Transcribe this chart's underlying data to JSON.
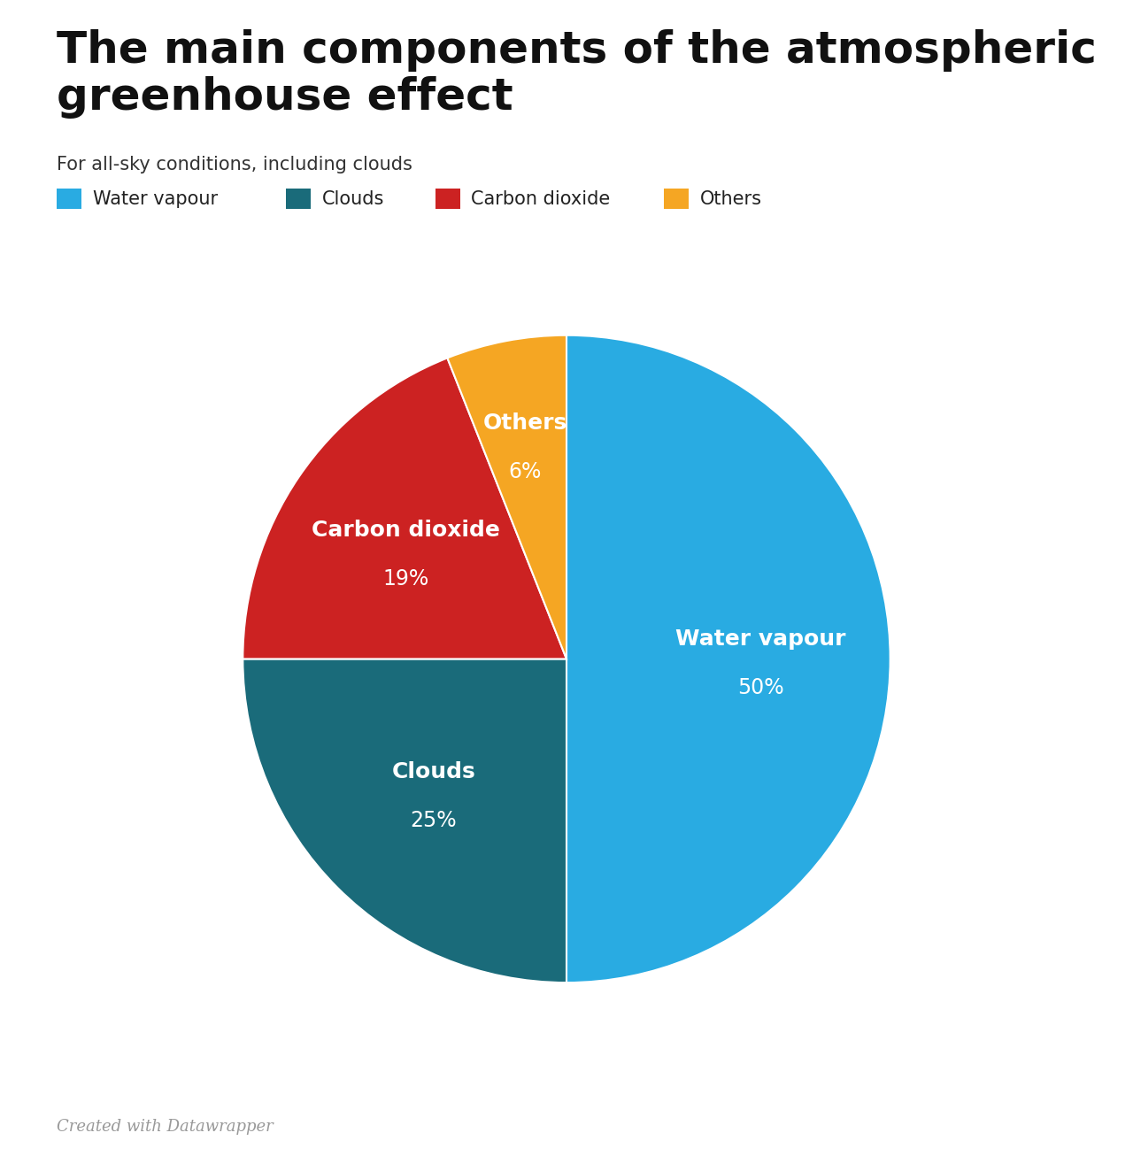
{
  "title": "The main components of the atmospheric\ngreenhouse effect",
  "subtitle": "For all-sky conditions, including clouds",
  "footer": "Created with Datawrapper",
  "slices": [
    {
      "label": "Water vapour",
      "value": 50,
      "color": "#29ABE2",
      "text_color": "#ffffff"
    },
    {
      "label": "Clouds",
      "value": 25,
      "color": "#1A6B7A",
      "text_color": "#ffffff"
    },
    {
      "label": "Carbon dioxide",
      "value": 19,
      "color": "#CC2222",
      "text_color": "#ffffff"
    },
    {
      "label": "Others",
      "value": 6,
      "color": "#F5A623",
      "text_color": "#ffffff"
    }
  ],
  "legend_colors": [
    "#29ABE2",
    "#1A6B7A",
    "#CC2222",
    "#F5A623"
  ],
  "legend_labels": [
    "Water vapour",
    "Clouds",
    "Carbon dioxide",
    "Others"
  ],
  "background_color": "#ffffff",
  "title_fontsize": 36,
  "subtitle_fontsize": 15,
  "legend_fontsize": 15,
  "label_fontsize": 18,
  "pct_fontsize": 17,
  "footer_fontsize": 13,
  "startangle": 90
}
